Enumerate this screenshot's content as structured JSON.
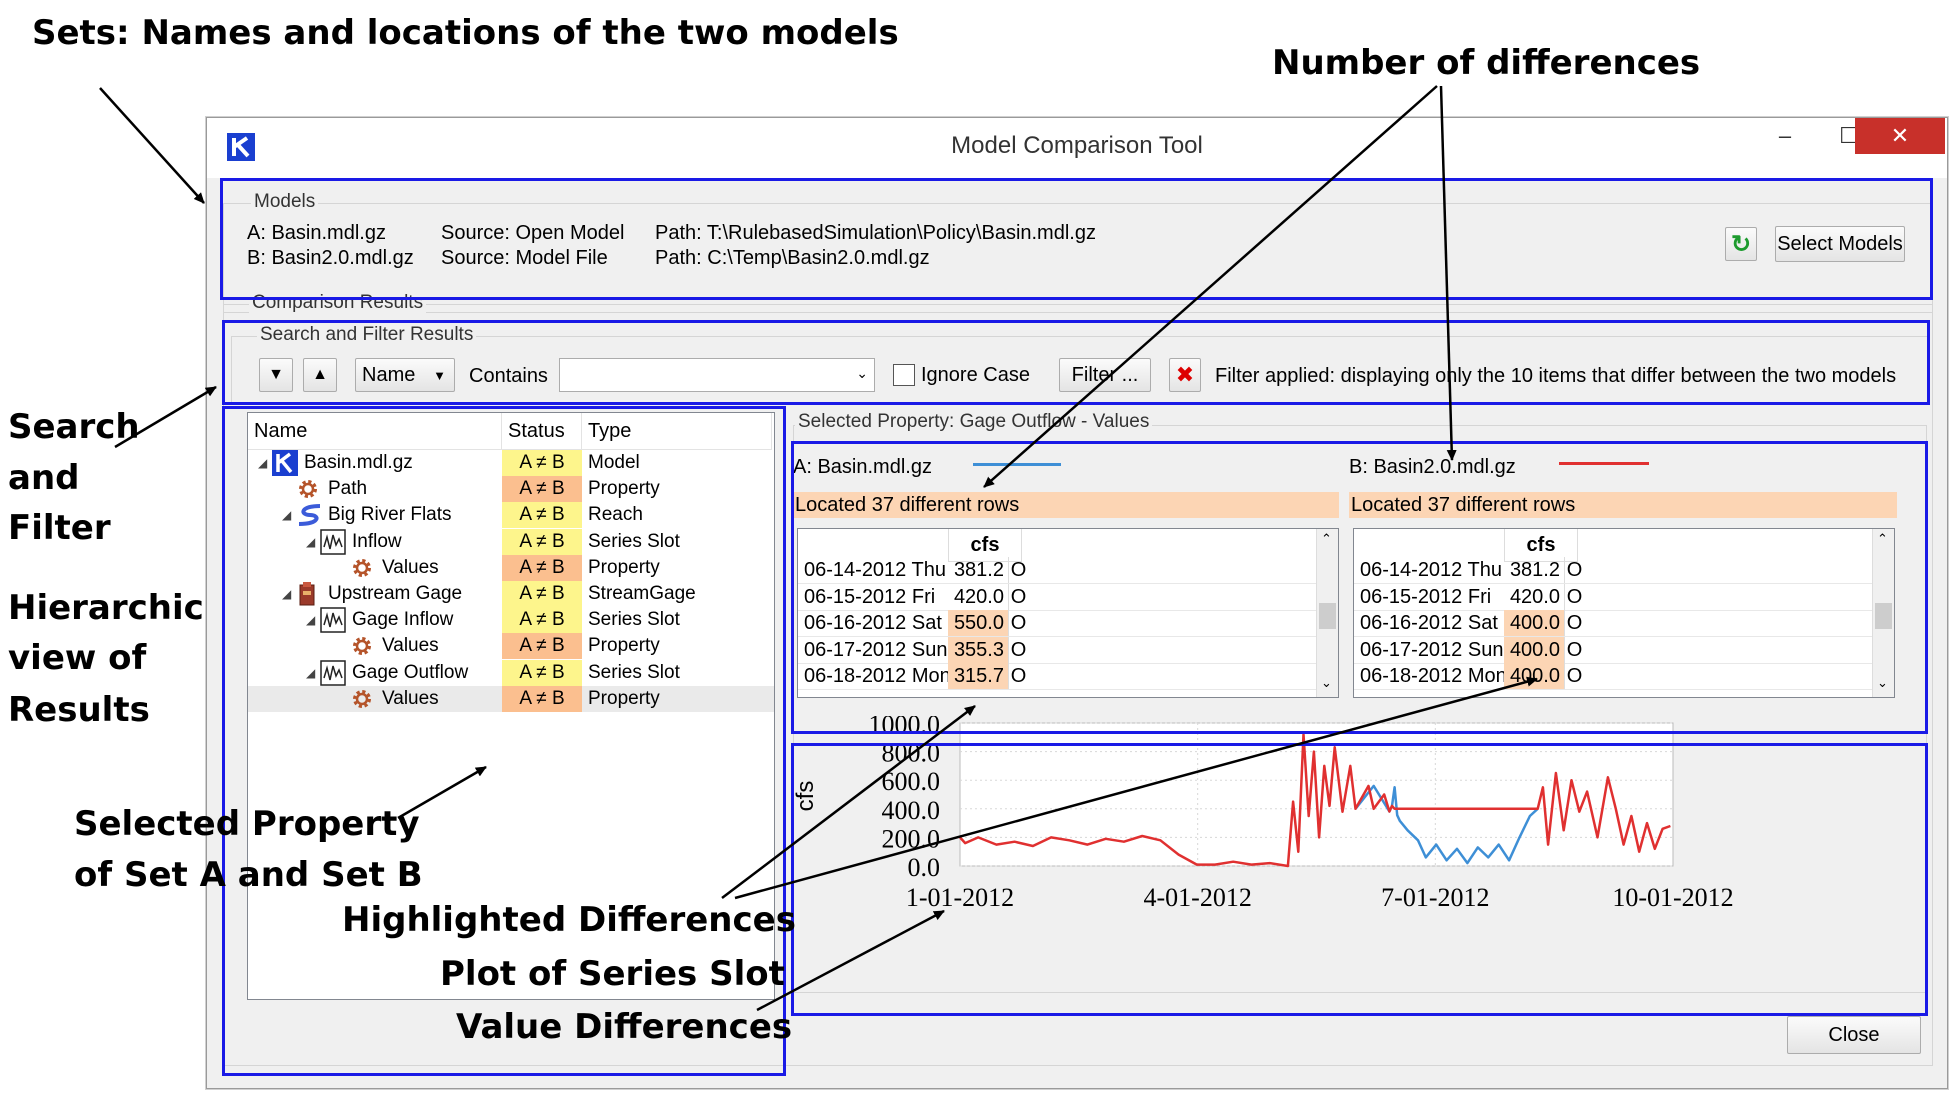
{
  "callouts": {
    "sets": "Sets: Names and locations of the two models",
    "num_diff": "Number of differences",
    "search1": "Search",
    "search2": "and",
    "search3": "Filter",
    "hier1": "Hierarchical",
    "hier2": "view of",
    "hier3": "Results",
    "selprop1": "Selected Property",
    "selprop2": "of Set A and Set B",
    "highlighted": "Highlighted Differences",
    "plot": "Plot of Series Slot",
    "value_diff": "Value Differences"
  },
  "window": {
    "title": "Model Comparison Tool",
    "min": "–",
    "max": "☐",
    "close": "✕"
  },
  "models": {
    "group_label": "Models",
    "a_name": "A: Basin.mdl.gz",
    "b_name": "B: Basin2.0.mdl.gz",
    "a_source": "Source: Open Model",
    "b_source": "Source: Model File",
    "a_path": "Path: T:\\RulebasedSimulation\\Policy\\Basin.mdl.gz",
    "b_path": "Path: C:\\Temp\\Basin2.0.mdl.gz",
    "refresh_glyph": "↻",
    "select_label": "Select Models"
  },
  "results": {
    "group_label": "Comparison Results",
    "search_label": "Search and Filter Results",
    "down_glyph": "▼",
    "up_glyph": "▲",
    "field_select": "Name",
    "contains": "Contains",
    "search_value": "",
    "ignore_case": "Ignore Case",
    "filter_label": "Filter ...",
    "clear_glyph": "✖",
    "filter_status": "Filter applied: displaying only the 10 items that differ between the two models"
  },
  "tree": {
    "headers": [
      "Name",
      "Status",
      "Type"
    ],
    "rows": [
      {
        "name": "Basin.mdl.gz",
        "status": "A ≠ B",
        "type": "Model",
        "level": 0,
        "icon": "model-icon",
        "expander": "◢",
        "diff": false
      },
      {
        "name": "Path",
        "status": "A ≠ B",
        "type": "Property",
        "level": 1,
        "icon": "property-gear-icon",
        "expander": "",
        "diff": true
      },
      {
        "name": "Big River Flats",
        "status": "A ≠ B",
        "type": "Reach",
        "level": 1,
        "icon": "reach-icon",
        "expander": "◢",
        "diff": false
      },
      {
        "name": "Inflow",
        "status": "A ≠ B",
        "type": "Series Slot",
        "level": 2,
        "icon": "series-slot-icon",
        "expander": "◢",
        "diff": false
      },
      {
        "name": "Values",
        "status": "A ≠ B",
        "type": "Property",
        "level": 3,
        "icon": "property-gear-icon",
        "expander": "",
        "diff": true
      },
      {
        "name": "Upstream Gage",
        "status": "A ≠ B",
        "type": "StreamGage",
        "level": 1,
        "icon": "stream-gage-icon",
        "expander": "◢",
        "diff": false
      },
      {
        "name": "Gage Inflow",
        "status": "A ≠ B",
        "type": "Series Slot",
        "level": 2,
        "icon": "series-slot-icon",
        "expander": "◢",
        "diff": false
      },
      {
        "name": "Values",
        "status": "A ≠ B",
        "type": "Property",
        "level": 3,
        "icon": "property-gear-icon",
        "expander": "",
        "diff": true
      },
      {
        "name": "Gage Outflow",
        "status": "A ≠ B",
        "type": "Series Slot",
        "level": 2,
        "icon": "series-slot-icon",
        "expander": "◢",
        "diff": false
      },
      {
        "name": "Values",
        "status": "A ≠ B",
        "type": "Property",
        "level": 3,
        "icon": "property-gear-icon",
        "expander": "",
        "diff": true,
        "selected": true
      }
    ]
  },
  "selected": {
    "label": "Selected Property: Gage Outflow - Values",
    "a_label": "A: Basin.mdl.gz",
    "b_label": "B: Basin2.0.mdl.gz",
    "a_color": "#3e8fd6",
    "b_color": "#e03030",
    "located_a": "Located 37 different rows",
    "located_b": "Located 37 different rows",
    "unit": "cfs",
    "flag": "O",
    "rows_a": [
      {
        "date": "06-14-2012 Thu",
        "value": "381.2",
        "diff": false
      },
      {
        "date": "06-15-2012 Fri",
        "value": "420.0",
        "diff": false
      },
      {
        "date": "06-16-2012 Sat",
        "value": "550.0",
        "diff": true
      },
      {
        "date": "06-17-2012 Sun",
        "value": "355.3",
        "diff": true
      },
      {
        "date": "06-18-2012 Mon",
        "value": "315.7",
        "diff": true
      }
    ],
    "rows_b": [
      {
        "date": "06-14-2012 Thu",
        "value": "381.2",
        "diff": false
      },
      {
        "date": "06-15-2012 Fri",
        "value": "420.0",
        "diff": false
      },
      {
        "date": "06-16-2012 Sat",
        "value": "400.0",
        "diff": true
      },
      {
        "date": "06-17-2012 Sun",
        "value": "400.0",
        "diff": true
      },
      {
        "date": "06-18-2012 Mon",
        "value": "400.0",
        "diff": true
      }
    ]
  },
  "chart_data": {
    "type": "line",
    "title": "",
    "xlabel": "",
    "ylabel": "cfs",
    "ylim": [
      0,
      1000
    ],
    "yticks": [
      "0.0",
      "200.0",
      "400.0",
      "600.0",
      "800.0",
      "1000.0"
    ],
    "xlim": [
      "2012-01-01",
      "2012-10-01"
    ],
    "xticks": [
      "1-01-2012",
      "4-01-2012",
      "7-01-2012",
      "10-01-2012"
    ],
    "grid": true,
    "series": [
      {
        "name": "A: Basin.mdl.gz",
        "color": "#3e8fd6",
        "x": [
          "2012-06-01",
          "2012-06-08",
          "2012-06-14",
          "2012-06-15",
          "2012-06-16",
          "2012-06-17",
          "2012-06-18",
          "2012-06-21",
          "2012-06-25",
          "2012-06-28",
          "2012-07-02",
          "2012-07-06",
          "2012-07-10",
          "2012-07-14",
          "2012-07-18",
          "2012-07-22",
          "2012-07-26",
          "2012-07-30",
          "2012-08-03",
          "2012-08-07",
          "2012-08-10"
        ],
        "y": [
          400,
          560,
          381,
          420,
          550,
          355,
          316,
          250,
          180,
          60,
          150,
          40,
          120,
          20,
          130,
          60,
          150,
          40,
          200,
          350,
          400
        ]
      },
      {
        "name": "B: Basin2.0.mdl.gz",
        "color": "#e03030",
        "x": [
          "2012-01-01",
          "2012-01-03",
          "2012-01-08",
          "2012-01-15",
          "2012-01-22",
          "2012-01-29",
          "2012-02-05",
          "2012-02-12",
          "2012-02-19",
          "2012-02-26",
          "2012-03-04",
          "2012-03-11",
          "2012-03-18",
          "2012-03-25",
          "2012-04-01",
          "2012-04-08",
          "2012-04-15",
          "2012-04-22",
          "2012-04-29",
          "2012-05-06",
          "2012-05-08",
          "2012-05-10",
          "2012-05-12",
          "2012-05-14",
          "2012-05-16",
          "2012-05-18",
          "2012-05-20",
          "2012-05-22",
          "2012-05-24",
          "2012-05-27",
          "2012-05-30",
          "2012-06-01",
          "2012-06-06",
          "2012-06-08",
          "2012-06-12",
          "2012-06-14",
          "2012-06-15",
          "2012-06-16",
          "2012-08-10",
          "2012-08-12",
          "2012-08-14",
          "2012-08-17",
          "2012-08-20",
          "2012-08-23",
          "2012-08-26",
          "2012-08-29",
          "2012-09-02",
          "2012-09-06",
          "2012-09-09",
          "2012-09-12",
          "2012-09-15",
          "2012-09-18",
          "2012-09-21",
          "2012-09-24",
          "2012-09-27",
          "2012-09-30"
        ],
        "y": [
          200,
          160,
          200,
          150,
          170,
          140,
          200,
          180,
          150,
          190,
          170,
          210,
          180,
          80,
          10,
          10,
          30,
          10,
          20,
          0,
          450,
          100,
          920,
          350,
          800,
          200,
          700,
          420,
          830,
          380,
          700,
          400,
          560,
          400,
          500,
          381,
          420,
          400,
          400,
          550,
          150,
          650,
          250,
          600,
          380,
          520,
          200,
          620,
          400,
          150,
          350,
          100,
          300,
          120,
          260,
          280
        ]
      }
    ]
  },
  "footer": {
    "close_label": "Close"
  }
}
